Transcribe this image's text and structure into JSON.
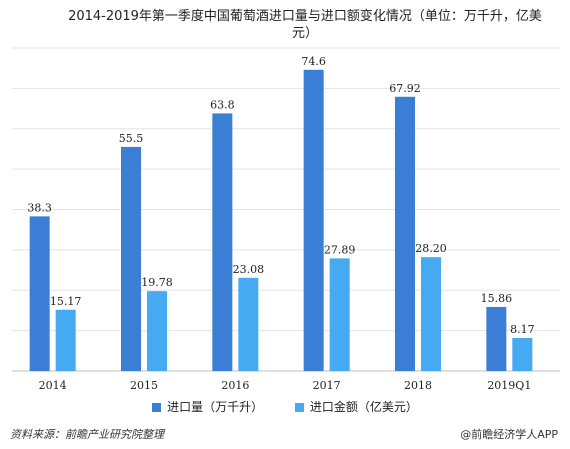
{
  "chart_data": {
    "type": "bar",
    "title": "2014-2019年第一季度中国葡萄酒进口量与进口额变化情况（单位：万千升，亿美元）",
    "categories": [
      "2014",
      "2015",
      "2016",
      "2017",
      "2018",
      "2019Q1"
    ],
    "series": [
      {
        "name": "进口量（万千升）",
        "values": [
          38.3,
          55.5,
          63.8,
          74.6,
          67.92,
          15.86
        ],
        "labels": [
          "38.3",
          "55.5",
          "63.8",
          "74.6",
          "67.92",
          "15.86"
        ],
        "color": "#3a7fd5"
      },
      {
        "name": "进口金额（亿美元）",
        "values": [
          15.17,
          19.78,
          23.08,
          27.89,
          28.2,
          8.17
        ],
        "labels": [
          "15.17",
          "19.78",
          "23.08",
          "27.89",
          "28.20",
          "8.17"
        ],
        "color": "#45aaf2"
      }
    ],
    "xlabel": "",
    "ylabel": "",
    "ylim": [
      0,
      80
    ],
    "grid": true,
    "legend": "bottom"
  },
  "footer": {
    "source": "资料来源：前瞻产业研究院整理",
    "brand": "@前瞻经济学人APP"
  }
}
